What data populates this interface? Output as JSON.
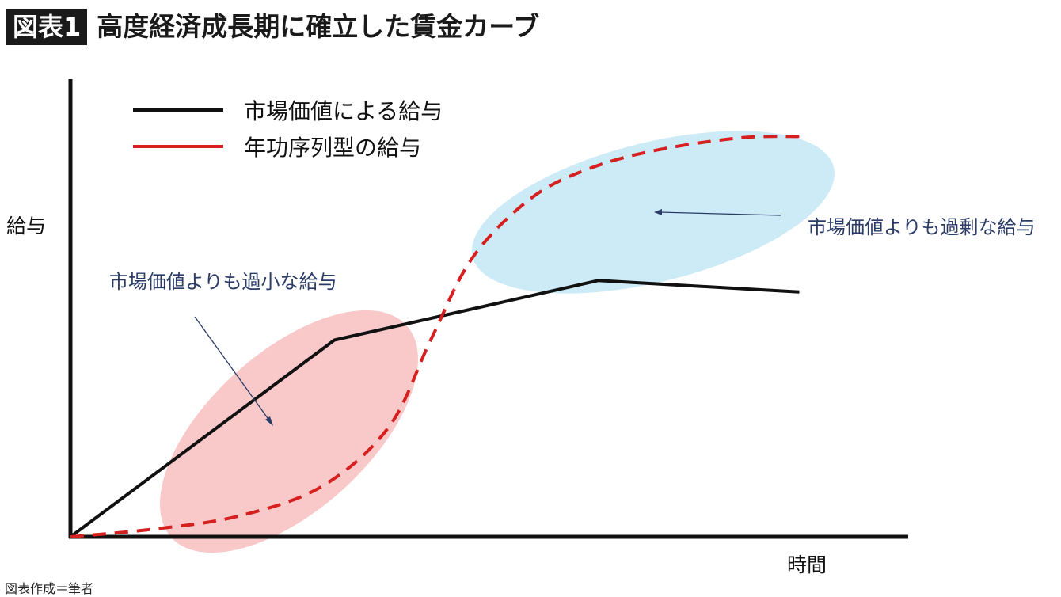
{
  "header": {
    "badge": "図表1",
    "title": "高度経済成長期に確立した賃金カーブ"
  },
  "source_note": "図表作成＝筆者",
  "colors": {
    "market_line": "#111111",
    "seniority_line": "#d61f1f",
    "under_region": "#f9c9c9",
    "over_region": "#cdeaf7",
    "annotation_text": "#2a3b66"
  },
  "chart_data": {
    "type": "line",
    "title": "高度経済成長期に確立した賃金カーブ",
    "xlabel": "時間",
    "ylabel": "給与",
    "xlim": [
      0,
      100
    ],
    "ylim": [
      0,
      100
    ],
    "grid": false,
    "legend_position": "top-left",
    "series": [
      {
        "name": "市場価値による給与",
        "style": "solid",
        "color": "#111111",
        "points": [
          [
            0,
            0
          ],
          [
            31.5,
            43
          ],
          [
            63,
            56
          ],
          [
            87,
            53.5
          ]
        ]
      },
      {
        "name": "年功序列型の給与",
        "style": "dashed",
        "color": "#d61f1f",
        "points": [
          [
            0,
            0
          ],
          [
            10,
            1.7
          ],
          [
            20,
            4.5
          ],
          [
            30,
            11
          ],
          [
            38,
            24
          ],
          [
            43,
            43
          ],
          [
            48,
            61
          ],
          [
            55,
            74
          ],
          [
            62,
            80.5
          ],
          [
            70,
            84.5
          ],
          [
            80,
            87.2
          ],
          [
            87,
            87.5
          ]
        ]
      }
    ],
    "annotations": [
      {
        "text": "市場価値よりも過小な給与",
        "region": "under",
        "position": "middle-left"
      },
      {
        "text": "市場価値よりも過剰な給与",
        "region": "over",
        "position": "upper-right"
      }
    ]
  }
}
